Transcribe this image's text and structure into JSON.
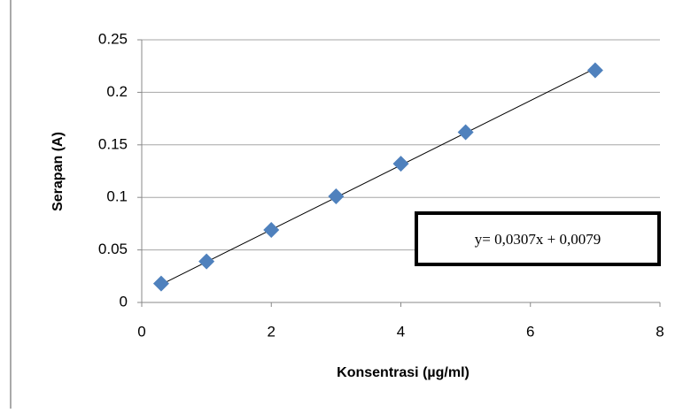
{
  "chart_data": {
    "type": "scatter",
    "x_label": "Konsentrasi (µg/ml)",
    "y_label": "Serapan (A)",
    "x": [
      0.3,
      1,
      2,
      3,
      4,
      5,
      7
    ],
    "series": [
      {
        "color": "#4f81bd",
        "values": [
          0.018,
          0.039,
          0.069,
          0.101,
          0.132,
          0.162,
          0.221
        ]
      }
    ],
    "xlim": [
      0,
      8
    ],
    "xticks": [
      0,
      2,
      4,
      6,
      8
    ],
    "ylim": [
      0,
      0.25
    ],
    "yticks": [
      0,
      0.05,
      0.1,
      0.15,
      0.2,
      0.25
    ],
    "grid": true,
    "trendline": {
      "slope": 0.0307,
      "intercept": 0.0079,
      "label": "y= 0,0307x + 0,0079"
    }
  }
}
